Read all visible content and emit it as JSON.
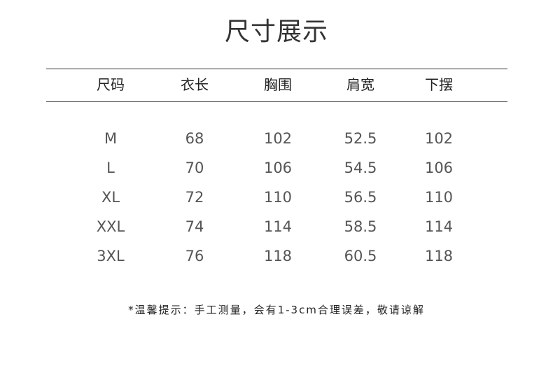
{
  "title": "尺寸展示",
  "table": {
    "headers": [
      "尺码",
      "衣长",
      "胸围",
      "肩宽",
      "下摆"
    ],
    "rows": [
      [
        "M",
        "68",
        "102",
        "52.5",
        "102"
      ],
      [
        "L",
        "70",
        "106",
        "54.5",
        "106"
      ],
      [
        "XL",
        "72",
        "110",
        "56.5",
        "110"
      ],
      [
        "XXL",
        "74",
        "114",
        "58.5",
        "114"
      ],
      [
        "3XL",
        "76",
        "118",
        "60.5",
        "118"
      ]
    ]
  },
  "note": "*温馨提示：手工测量，会有1-3cm合理误差，敬请谅解"
}
